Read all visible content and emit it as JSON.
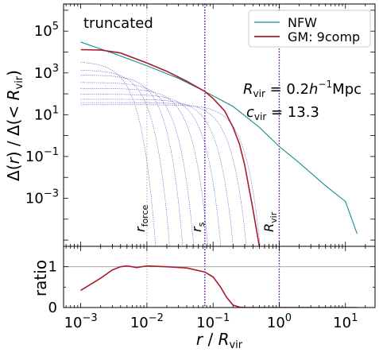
{
  "chart_data": [
    {
      "type": "line",
      "panel": "main",
      "title": "",
      "ylabel": "Δ(r) / Δ(< R_vir)",
      "xlabel": "",
      "xscale": "log",
      "yscale": "log",
      "xlim": [
        0.00055,
        28
      ],
      "ylim": [
        5e-06,
        2000000
      ],
      "grid": false,
      "legend_position": "top-right",
      "y_tick_labels": [
        "10^5",
        "10^3",
        "10^1",
        "10^-1",
        "10^-3"
      ],
      "annotations": {
        "truncated": "truncated",
        "rvir_text": "R_vir = 0.2h^-1 Mpc",
        "cvir_text": "c_vir = 13.3",
        "r_force_label": "r_force",
        "r_s_label": "r_s",
        "r_vir_label": "R_vir"
      },
      "vertical_lines": [
        {
          "name": "r_force",
          "x": 0.01,
          "style": "dotted",
          "color": "#a0a0a0"
        },
        {
          "name": "r_s",
          "x": 0.075,
          "style": "dotted",
          "color": "#5500aa"
        },
        {
          "name": "R_vir",
          "x": 1.0,
          "style": "dotted",
          "color": "#5500aa"
        }
      ],
      "series": [
        {
          "name": "NFW",
          "color": "#148f8f",
          "x": [
            0.001,
            0.003,
            0.01,
            0.03,
            0.075,
            0.2,
            0.5,
            1,
            2,
            5,
            10,
            15
          ],
          "y": [
            30000,
            9000,
            2200,
            550,
            130,
            25,
            2.5,
            0.3,
            0.05,
            0.004,
            0.0007,
            2e-05
          ]
        },
        {
          "name": "GM: 9comp",
          "color": "#a81c2c",
          "x": [
            0.001,
            0.002,
            0.004,
            0.01,
            0.02,
            0.04,
            0.075,
            0.1,
            0.15,
            0.2,
            0.25,
            0.3,
            0.4,
            0.5
          ],
          "y": [
            13000,
            12500,
            9000,
            3000,
            1200,
            400,
            130,
            60,
            15,
            2.5,
            0.4,
            0.04,
            0.0003,
            5e-06
          ]
        }
      ],
      "components": {
        "color": "#4b4bc8",
        "items": [
          {
            "amp": 3600,
            "rc": 0.003
          },
          {
            "amp": 1400,
            "rc": 0.005
          },
          {
            "amp": 800,
            "rc": 0.008
          },
          {
            "amp": 350,
            "rc": 0.012
          },
          {
            "amp": 180,
            "rc": 0.02
          },
          {
            "amp": 95,
            "rc": 0.032
          },
          {
            "amp": 55,
            "rc": 0.05
          },
          {
            "amp": 38,
            "rc": 0.08
          },
          {
            "amp": 30,
            "rc": 0.13
          }
        ]
      }
    },
    {
      "type": "line",
      "panel": "ratio",
      "xlabel": "r / R_vir",
      "ylabel": "ratio",
      "xscale": "log",
      "xlim": [
        0.00055,
        28
      ],
      "ylim": [
        0,
        1.5
      ],
      "x_tick_labels": [
        "10^-3",
        "10^-2",
        "10^-1",
        "10^0",
        "10^1"
      ],
      "y_tick_labels": [
        "0",
        "1"
      ],
      "reference_line": {
        "y": 1,
        "color": "#999999"
      },
      "vertical_lines": [
        {
          "name": "r_force",
          "x": 0.01,
          "style": "dotted",
          "color": "#a0a0a0"
        },
        {
          "name": "r_s",
          "x": 0.075,
          "style": "dotted",
          "color": "#5500aa"
        },
        {
          "name": "R_vir",
          "x": 1.0,
          "style": "dotted",
          "color": "#5500aa"
        }
      ],
      "series": [
        {
          "name": "GM: 9comp",
          "color": "#a81c2c",
          "x": [
            0.001,
            0.002,
            0.003,
            0.004,
            0.005,
            0.006,
            0.007,
            0.01,
            0.02,
            0.04,
            0.075,
            0.1,
            0.13,
            0.16,
            0.2,
            0.25,
            0.3,
            1,
            15
          ],
          "y": [
            0.42,
            0.72,
            0.92,
            1.0,
            1.02,
            1.0,
            0.98,
            1.02,
            1.0,
            0.97,
            0.87,
            0.75,
            0.5,
            0.25,
            0.06,
            0.01,
            0.0,
            0.0,
            0.0
          ]
        }
      ]
    }
  ]
}
